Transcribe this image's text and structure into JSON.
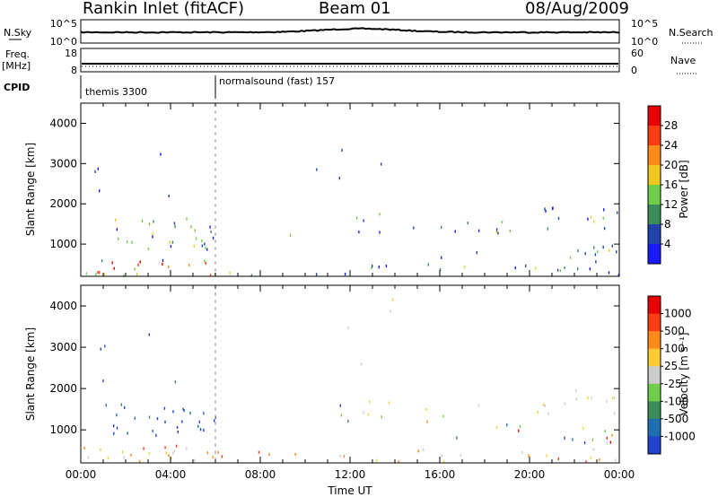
{
  "header": {
    "title": "Rankin Inlet (fitACF)",
    "beam": "Beam 01",
    "date": "08/Aug/2009"
  },
  "top_panels": {
    "nsky_label": "N.Sky",
    "nsearch_label": "N.Search",
    "nsky_ticks": [
      "10^5",
      "10^0"
    ],
    "nsearch_ticks": [
      "10^5",
      "10^0"
    ],
    "freq_label": "Freq.",
    "freq_unit": "[MHz]",
    "freq_ticks": [
      "18",
      "8"
    ],
    "nave_label": "Nave",
    "nave_ticks": [
      "60",
      "0"
    ],
    "cpid_label": "CPID",
    "cpid_segments": [
      {
        "label": "themis 3300",
        "start_hour": 0,
        "end_hour": 6
      },
      {
        "label": "normalsound (fast) 157",
        "start_hour": 6,
        "end_hour": 24
      }
    ]
  },
  "colors": {
    "power": [
      "#1a1aff",
      "#2244aa",
      "#3c8c5a",
      "#6fcf4a",
      "#f0c820",
      "#ff8c1a",
      "#ff3c14",
      "#e60000"
    ],
    "velocity": [
      "#2244cc",
      "#1f6fb0",
      "#3c8c5a",
      "#6fcf4a",
      "#cccccc",
      "#ffcc33",
      "#ff8c1a",
      "#ff3c14",
      "#e60000"
    ]
  },
  "chart_data": [
    {
      "type": "heatmap",
      "name": "power",
      "ylabel": "Slant Range [km]",
      "yticks": [
        "1000",
        "2000",
        "3000",
        "4000"
      ],
      "ylim": [
        200,
        4500
      ],
      "xlim_hours": [
        0,
        24
      ],
      "colorbar_label": "Power [dB]",
      "colorbar_ticks": [
        "4",
        "8",
        "12",
        "16",
        "20",
        "24",
        "28"
      ],
      "colorbar_range": [
        0,
        30
      ]
    },
    {
      "type": "heatmap",
      "name": "velocity",
      "ylabel": "Slant Range [km]",
      "yticks": [
        "1000",
        "2000",
        "3000",
        "4000"
      ],
      "ylim": [
        200,
        4500
      ],
      "xlim_hours": [
        0,
        24
      ],
      "xlabel": "Time UT",
      "xticks": [
        "00:00",
        "04:00",
        "08:00",
        "12:00",
        "16:00",
        "20:00",
        "00:00"
      ],
      "colorbar_label": "Velocity [m s⁻¹]",
      "colorbar_ticks": [
        "1000",
        "500",
        "100",
        "25",
        "-25",
        "-100",
        "-500",
        "-1000"
      ]
    }
  ]
}
